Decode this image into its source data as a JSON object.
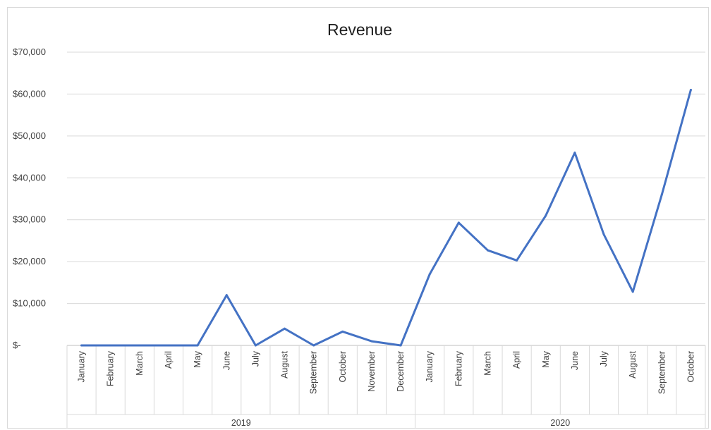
{
  "chart_data": {
    "type": "line",
    "title": "Revenue",
    "xlabel": "",
    "ylabel": "",
    "ylim": [
      0,
      70000
    ],
    "y_ticks": [
      {
        "value": 0,
        "label": "$-"
      },
      {
        "value": 10000,
        "label": "$10,000"
      },
      {
        "value": 20000,
        "label": "$20,000"
      },
      {
        "value": 30000,
        "label": "$30,000"
      },
      {
        "value": 40000,
        "label": "$40,000"
      },
      {
        "value": 50000,
        "label": "$50,000"
      },
      {
        "value": 60000,
        "label": "$60,000"
      },
      {
        "value": 70000,
        "label": "$70,000"
      }
    ],
    "grid": true,
    "legend": false,
    "line_color": "#4472C4",
    "groups": [
      {
        "label": "2019",
        "categories": [
          "January",
          "February",
          "March",
          "April",
          "May",
          "June",
          "July",
          "August",
          "September",
          "October",
          "November",
          "December"
        ],
        "values": [
          0,
          0,
          0,
          0,
          0,
          12000,
          0,
          4000,
          0,
          3300,
          1000,
          0
        ]
      },
      {
        "label": "2020",
        "categories": [
          "January",
          "February",
          "March",
          "April",
          "May",
          "June",
          "July",
          "August",
          "September",
          "October"
        ],
        "values": [
          17000,
          29300,
          22700,
          20300,
          31000,
          46000,
          26500,
          12800,
          36000,
          61000
        ]
      }
    ]
  }
}
